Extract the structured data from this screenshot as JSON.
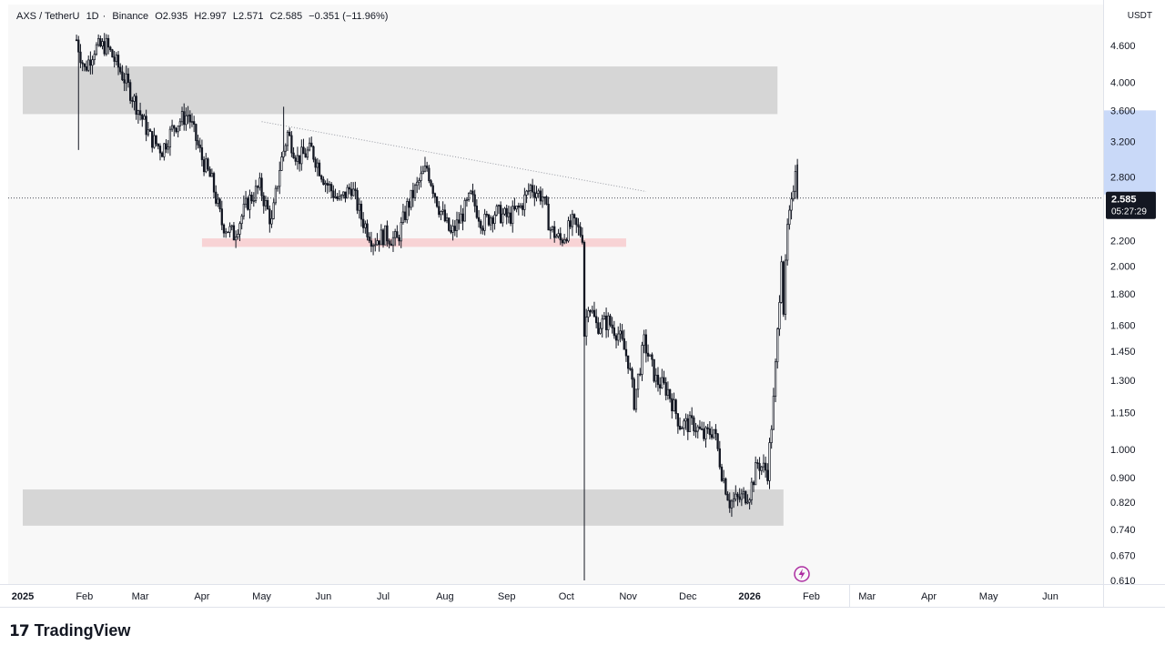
{
  "legend": {
    "pair": "AXS / TetherU",
    "interval": "1D",
    "exchange": "Binance",
    "open": "O2.935",
    "high": "H2.997",
    "low": "L2.571",
    "close": "C2.585",
    "change": "−0.351 (−11.96%)"
  },
  "currency": "USDT",
  "last_price": {
    "value": "2.585",
    "countdown": "05:27:29"
  },
  "brand": "TradingView",
  "chart_data": {
    "type": "candlestick",
    "y_scale": "log",
    "y_ticks": [
      {
        "v": 0.61,
        "label": "0.610"
      },
      {
        "v": 0.67,
        "label": "0.670"
      },
      {
        "v": 0.74,
        "label": "0.740"
      },
      {
        "v": 0.82,
        "label": "0.820"
      },
      {
        "v": 0.9,
        "label": "0.900"
      },
      {
        "v": 1.0,
        "label": "1.000"
      },
      {
        "v": 1.15,
        "label": "1.150"
      },
      {
        "v": 1.3,
        "label": "1.300"
      },
      {
        "v": 1.45,
        "label": "1.450"
      },
      {
        "v": 1.6,
        "label": "1.600"
      },
      {
        "v": 1.8,
        "label": "1.800"
      },
      {
        "v": 2.0,
        "label": "2.000"
      },
      {
        "v": 2.2,
        "label": "2.200"
      },
      {
        "v": 2.8,
        "label": "2.800"
      },
      {
        "v": 3.2,
        "label": "3.200"
      },
      {
        "v": 3.6,
        "label": "3.600"
      },
      {
        "v": 4.0,
        "label": "4.000"
      },
      {
        "v": 4.6,
        "label": "4.600"
      }
    ],
    "x_ticks": [
      {
        "date": "2025-01-01",
        "label": "2025",
        "bold": true
      },
      {
        "date": "2025-02-01",
        "label": "Feb"
      },
      {
        "date": "2025-03-01",
        "label": "Mar"
      },
      {
        "date": "2025-04-01",
        "label": "Apr"
      },
      {
        "date": "2025-05-01",
        "label": "May"
      },
      {
        "date": "2025-06-01",
        "label": "Jun"
      },
      {
        "date": "2025-07-01",
        "label": "Jul"
      },
      {
        "date": "2025-08-01",
        "label": "Aug"
      },
      {
        "date": "2025-09-01",
        "label": "Sep"
      },
      {
        "date": "2025-10-01",
        "label": "Oct"
      },
      {
        "date": "2025-11-01",
        "label": "Nov"
      },
      {
        "date": "2025-12-01",
        "label": "Dec"
      },
      {
        "date": "2026-01-01",
        "label": "2026",
        "bold": true
      },
      {
        "date": "2026-02-01",
        "label": "Feb"
      },
      {
        "date": "2026-03-01",
        "label": "Mar"
      },
      {
        "date": "2026-04-01",
        "label": "Apr"
      },
      {
        "date": "2026-05-01",
        "label": "May"
      },
      {
        "date": "2026-06-01",
        "label": "Jun"
      }
    ],
    "anchors": [
      {
        "date": "2025-01-28",
        "price": 4.7
      },
      {
        "date": "2025-02-01",
        "price": 4.2
      },
      {
        "date": "2025-02-06",
        "price": 4.55
      },
      {
        "date": "2025-02-12",
        "price": 4.6
      },
      {
        "date": "2025-02-17",
        "price": 4.3
      },
      {
        "date": "2025-02-22",
        "price": 4.0
      },
      {
        "date": "2025-03-01",
        "price": 3.55
      },
      {
        "date": "2025-03-06",
        "price": 3.25
      },
      {
        "date": "2025-03-12",
        "price": 3.1
      },
      {
        "date": "2025-03-18",
        "price": 3.4
      },
      {
        "date": "2025-03-25",
        "price": 3.55
      },
      {
        "date": "2025-04-01",
        "price": 3.0
      },
      {
        "date": "2025-04-06",
        "price": 2.75
      },
      {
        "date": "2025-04-11",
        "price": 2.35
      },
      {
        "date": "2025-04-17",
        "price": 2.25
      },
      {
        "date": "2025-04-24",
        "price": 2.55
      },
      {
        "date": "2025-04-30",
        "price": 2.7
      },
      {
        "date": "2025-05-06",
        "price": 2.35
      },
      {
        "date": "2025-05-10",
        "price": 2.9
      },
      {
        "date": "2025-05-14",
        "price": 3.3
      },
      {
        "date": "2025-05-19",
        "price": 3.0
      },
      {
        "date": "2025-05-26",
        "price": 3.1
      },
      {
        "date": "2025-06-02",
        "price": 2.75
      },
      {
        "date": "2025-06-09",
        "price": 2.55
      },
      {
        "date": "2025-06-15",
        "price": 2.7
      },
      {
        "date": "2025-06-20",
        "price": 2.4
      },
      {
        "date": "2025-06-26",
        "price": 2.2
      },
      {
        "date": "2025-07-02",
        "price": 2.25
      },
      {
        "date": "2025-07-08",
        "price": 2.2
      },
      {
        "date": "2025-07-13",
        "price": 2.5
      },
      {
        "date": "2025-07-19",
        "price": 2.75
      },
      {
        "date": "2025-07-23",
        "price": 2.9
      },
      {
        "date": "2025-07-29",
        "price": 2.5
      },
      {
        "date": "2025-08-04",
        "price": 2.25
      },
      {
        "date": "2025-08-09",
        "price": 2.4
      },
      {
        "date": "2025-08-14",
        "price": 2.6
      },
      {
        "date": "2025-08-20",
        "price": 2.35
      },
      {
        "date": "2025-08-26",
        "price": 2.45
      },
      {
        "date": "2025-09-02",
        "price": 2.4
      },
      {
        "date": "2025-09-08",
        "price": 2.5
      },
      {
        "date": "2025-09-13",
        "price": 2.7
      },
      {
        "date": "2025-09-19",
        "price": 2.6
      },
      {
        "date": "2025-09-23",
        "price": 2.3
      },
      {
        "date": "2025-09-28",
        "price": 2.2
      },
      {
        "date": "2025-10-04",
        "price": 2.35
      },
      {
        "date": "2025-10-09",
        "price": 2.25
      },
      {
        "date": "2025-10-10",
        "price": 1.55
      },
      {
        "date": "2025-10-12",
        "price": 1.75
      },
      {
        "date": "2025-10-16",
        "price": 1.6
      },
      {
        "date": "2025-10-22",
        "price": 1.62
      },
      {
        "date": "2025-10-27",
        "price": 1.55
      },
      {
        "date": "2025-11-01",
        "price": 1.4
      },
      {
        "date": "2025-11-04",
        "price": 1.2
      },
      {
        "date": "2025-11-09",
        "price": 1.5
      },
      {
        "date": "2025-11-15",
        "price": 1.3
      },
      {
        "date": "2025-11-21",
        "price": 1.25
      },
      {
        "date": "2025-11-27",
        "price": 1.1
      },
      {
        "date": "2025-12-04",
        "price": 1.1
      },
      {
        "date": "2025-12-09",
        "price": 1.05
      },
      {
        "date": "2025-12-14",
        "price": 1.08
      },
      {
        "date": "2025-12-18",
        "price": 0.92
      },
      {
        "date": "2025-12-22",
        "price": 0.82
      },
      {
        "date": "2025-12-27",
        "price": 0.83
      },
      {
        "date": "2026-01-01",
        "price": 0.85
      },
      {
        "date": "2026-01-05",
        "price": 0.95
      },
      {
        "date": "2026-01-10",
        "price": 0.92
      },
      {
        "date": "2026-01-13",
        "price": 1.2
      },
      {
        "date": "2026-01-15",
        "price": 1.55
      },
      {
        "date": "2026-01-17",
        "price": 2.1
      },
      {
        "date": "2026-01-18",
        "price": 1.7
      },
      {
        "date": "2026-01-20",
        "price": 2.3
      },
      {
        "date": "2026-01-22",
        "price": 2.5
      },
      {
        "date": "2026-01-24",
        "price": 2.94
      }
    ],
    "last_candle": {
      "date": "2026-01-25",
      "open": 2.935,
      "high": 2.997,
      "low": 2.571,
      "close": 2.585
    },
    "wick_extremes": [
      {
        "date": "2025-10-10",
        "low": 0.61
      },
      {
        "date": "2025-05-12",
        "high": 3.65
      },
      {
        "date": "2025-01-29",
        "low": 3.1
      }
    ],
    "zones": [
      {
        "type": "resistance",
        "from": "2025-01-01",
        "to": "2026-01-15",
        "low": 3.55,
        "high": 4.25,
        "color": "#d6d6d6"
      },
      {
        "type": "support",
        "from": "2025-04-01",
        "to": "2025-10-31",
        "low": 2.15,
        "high": 2.22,
        "color": "#f8d3d5"
      },
      {
        "type": "support",
        "from": "2025-01-01",
        "to": "2026-01-18",
        "low": 0.75,
        "high": 0.86,
        "color": "#d6d6d6"
      }
    ],
    "trendline": {
      "from": {
        "date": "2025-05-01",
        "price": 3.45
      },
      "to": {
        "date": "2025-11-10",
        "price": 2.65
      }
    },
    "last_price_line": 2.585,
    "highlight_range": {
      "low": 2.62,
      "high": 3.6,
      "color": "#c9d9f8"
    },
    "colors": {
      "candle": "#131722",
      "grid": "#f8f8f8",
      "text": "#131722",
      "axis_line": "#e0e3eb",
      "label_bg": "#131722",
      "alert": "#ad2ea2"
    },
    "icons": {
      "alert": "lightning-alert-icon"
    }
  }
}
